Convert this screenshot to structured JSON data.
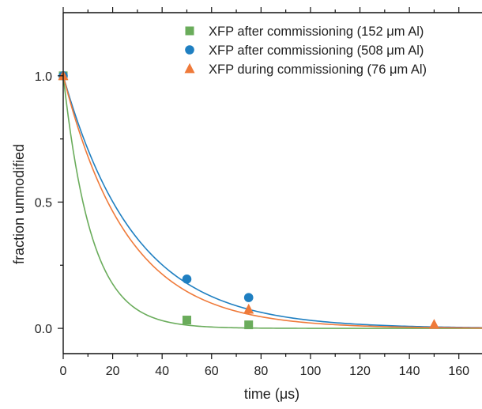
{
  "chart_data": {
    "type": "scatter",
    "title": "",
    "xlabel": "time (μs)",
    "ylabel": "fraction unmodified",
    "xlim": [
      0,
      170
    ],
    "ylim": [
      -0.1,
      1.25
    ],
    "xticks": [
      0,
      20,
      40,
      60,
      80,
      100,
      120,
      140,
      160
    ],
    "xtick_labels": [
      "0",
      "20",
      "40",
      "60",
      "80",
      "100",
      "120",
      "140",
      "160"
    ],
    "yticks": [
      0.0,
      0.5,
      1.0
    ],
    "ytick_labels": [
      "0.0",
      "0.5",
      "1.0"
    ],
    "grid": false,
    "legend_position": "top-right",
    "series": [
      {
        "name": "XFP after commissioning (152 μm Al)",
        "marker": "square",
        "color": "#6aac5b",
        "points": [
          [
            0,
            1.0
          ],
          [
            50,
            0.033
          ],
          [
            75,
            0.014
          ]
        ],
        "fit_tau": 11.5
      },
      {
        "name": "XFP after commissioning (508 μm Al)",
        "marker": "circle",
        "color": "#1f7fc1",
        "points": [
          [
            0,
            1.0
          ],
          [
            50,
            0.195
          ],
          [
            75,
            0.122
          ]
        ],
        "fit_tau": 29
      },
      {
        "name": "XFP during commissioning (76 μm Al)",
        "marker": "triangle",
        "color": "#ef7a3a",
        "points": [
          [
            0,
            1.0
          ],
          [
            75,
            0.075
          ],
          [
            150,
            0.015
          ]
        ],
        "fit_tau": 26
      }
    ]
  }
}
